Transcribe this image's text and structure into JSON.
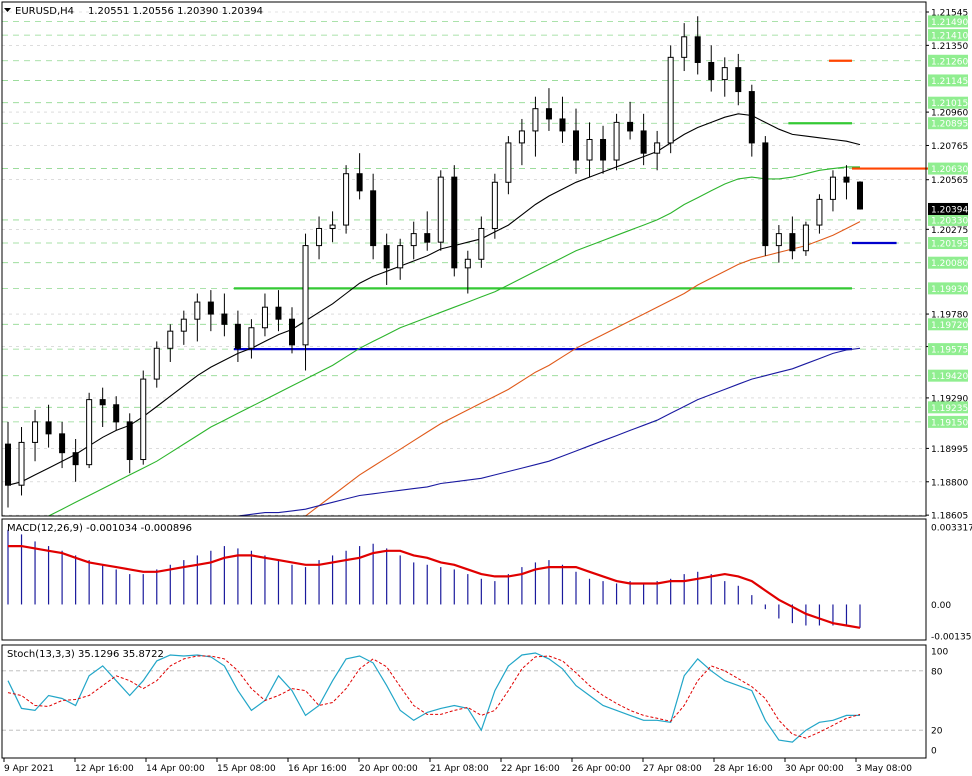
{
  "header": {
    "symbol": "EURUSD,H4",
    "ohlc": "1.20551 1.20556 1.20390 1.20394"
  },
  "colors": {
    "bull_candle": "#ffffff",
    "bear_candle": "#000000",
    "ma_fast": "#000000",
    "ma_mid": "#2db52d",
    "ma_slow": "#e05a1a",
    "ma_long": "#1a1aa0",
    "resistance": "#ff4500",
    "support_green": "#34c934",
    "support_blue": "#0000cc",
    "level_tag_bg": "#90ee90",
    "macd_hist": "#1a1a9c",
    "macd_signal": "#e00000",
    "stoch_main": "#22a6c8",
    "stoch_signal": "#e00000",
    "last_price_bg": "#000000"
  },
  "panes": {
    "main": {
      "scale_labels": [
        "1.21545",
        "1.21350",
        "1.20960",
        "1.20765",
        "1.20565",
        "1.20275",
        "1.19780",
        "1.19590",
        "1.19290",
        "1.18995",
        "1.18800",
        "1.18605"
      ],
      "level_tags": [
        "1.21490",
        "1.21410",
        "1.21260",
        "1.21145",
        "1.21015",
        "1.20895",
        "1.20630",
        "1.20330",
        "1.20195",
        "1.20080",
        "1.19930",
        "1.19720",
        "1.19575",
        "1.19420",
        "1.19235",
        "1.19150"
      ],
      "last_price": "1.20394"
    },
    "macd": {
      "label": "MACD(12,26,9) -0.001034 -0.000896",
      "scale_labels": [
        "0.003317",
        "0.00",
        "-0.00135"
      ]
    },
    "stoch": {
      "label": "Stoch(13,3,3) 35.1296 35.8722",
      "scale_labels": [
        "100",
        "80",
        "20",
        "0"
      ]
    }
  },
  "time_axis": [
    "9 Apr 2021",
    "12 Apr 16:00",
    "14 Apr 00:00",
    "15 Apr 08:00",
    "16 Apr 16:00",
    "20 Apr 00:00",
    "21 Apr 08:00",
    "22 Apr 16:00",
    "26 Apr 00:00",
    "27 Apr 08:00",
    "28 Apr 16:00",
    "30 Apr 00:00",
    "3 May 08:00"
  ],
  "chart_data": {
    "type": "candlestick",
    "symbol": "EURUSD",
    "timeframe": "H4",
    "ylim": [
      1.186,
      1.2158
    ],
    "hlines": [
      {
        "price": 1.2126,
        "style": "resistance",
        "from": 61
      },
      {
        "price": 1.20895,
        "style": "support_green",
        "from": 58
      },
      {
        "price": 1.2063,
        "style": "resistance",
        "from": 70
      },
      {
        "price": 1.20195,
        "style": "support_blue",
        "from": 66
      },
      {
        "price": 1.1993,
        "style": "support_green",
        "from": 17
      },
      {
        "price": 1.19575,
        "style": "support_blue",
        "from": 17
      }
    ],
    "candles": [
      [
        1.1902,
        1.1915,
        1.1865,
        1.1878
      ],
      [
        1.1878,
        1.1912,
        1.1872,
        1.1903
      ],
      [
        1.1903,
        1.1922,
        1.1892,
        1.1915
      ],
      [
        1.1915,
        1.1925,
        1.19,
        1.1908
      ],
      [
        1.1908,
        1.1915,
        1.1888,
        1.1897
      ],
      [
        1.1897,
        1.1905,
        1.188,
        1.189
      ],
      [
        1.189,
        1.1932,
        1.1888,
        1.1928
      ],
      [
        1.1928,
        1.1935,
        1.1912,
        1.1925
      ],
      [
        1.1925,
        1.193,
        1.191,
        1.1915
      ],
      [
        1.1915,
        1.192,
        1.1885,
        1.1893
      ],
      [
        1.1893,
        1.1945,
        1.189,
        1.194
      ],
      [
        1.194,
        1.1962,
        1.1935,
        1.1958
      ],
      [
        1.1958,
        1.1972,
        1.195,
        1.1968
      ],
      [
        1.1968,
        1.198,
        1.196,
        1.1975
      ],
      [
        1.1975,
        1.199,
        1.1962,
        1.1985
      ],
      [
        1.1985,
        1.1992,
        1.1968,
        1.1978
      ],
      [
        1.1978,
        1.199,
        1.1965,
        1.1972
      ],
      [
        1.1972,
        1.198,
        1.195,
        1.1958
      ],
      [
        1.1958,
        1.1975,
        1.1952,
        1.197
      ],
      [
        1.197,
        1.199,
        1.1965,
        1.1982
      ],
      [
        1.1982,
        1.1992,
        1.1968,
        1.1975
      ],
      [
        1.1975,
        1.1982,
        1.1955,
        1.196
      ],
      [
        1.196,
        1.2025,
        1.1945,
        1.2018
      ],
      [
        1.2018,
        1.2035,
        1.201,
        1.2028
      ],
      [
        1.2028,
        1.2038,
        1.202,
        1.203
      ],
      [
        1.203,
        1.2065,
        1.2025,
        1.206
      ],
      [
        1.206,
        1.2072,
        1.2045,
        1.205
      ],
      [
        1.205,
        1.206,
        1.201,
        1.2018
      ],
      [
        1.2018,
        1.2025,
        1.1995,
        1.2005
      ],
      [
        1.2005,
        1.2022,
        1.1998,
        1.2018
      ],
      [
        1.2018,
        1.2032,
        1.201,
        1.2025
      ],
      [
        1.2025,
        1.2038,
        1.2015,
        1.202
      ],
      [
        1.202,
        1.2062,
        1.2015,
        1.2058
      ],
      [
        1.2058,
        1.2065,
        1.2,
        1.2005
      ],
      [
        1.2005,
        1.2015,
        1.199,
        1.201
      ],
      [
        1.201,
        1.2035,
        1.2005,
        1.2028
      ],
      [
        1.2028,
        1.206,
        1.2022,
        1.2055
      ],
      [
        1.2055,
        1.2082,
        1.2048,
        1.2078
      ],
      [
        1.2078,
        1.2092,
        1.2065,
        1.2085
      ],
      [
        1.2085,
        1.2105,
        1.207,
        1.2098
      ],
      [
        1.2098,
        1.211,
        1.2085,
        1.2092
      ],
      [
        1.2092,
        1.2105,
        1.2078,
        1.2085
      ],
      [
        1.2085,
        1.2098,
        1.206,
        1.2068
      ],
      [
        1.2068,
        1.209,
        1.2058,
        1.208
      ],
      [
        1.208,
        1.2088,
        1.206,
        1.2068
      ],
      [
        1.2068,
        1.2095,
        1.2062,
        1.209
      ],
      [
        1.209,
        1.2102,
        1.208,
        1.2085
      ],
      [
        1.2085,
        1.2095,
        1.2065,
        1.2072
      ],
      [
        1.2072,
        1.2085,
        1.2062,
        1.2078
      ],
      [
        1.2078,
        1.2135,
        1.2072,
        1.2128
      ],
      [
        1.2128,
        1.2148,
        1.212,
        1.214
      ],
      [
        1.214,
        1.2152,
        1.2118,
        1.2125
      ],
      [
        1.2125,
        1.2135,
        1.2108,
        1.2115
      ],
      [
        1.2115,
        1.2128,
        1.2105,
        1.2122
      ],
      [
        1.2122,
        1.213,
        1.21,
        1.2108
      ],
      [
        1.2108,
        1.2112,
        1.207,
        1.2078
      ],
      [
        1.2078,
        1.2082,
        1.2012,
        1.2018
      ],
      [
        1.2018,
        1.203,
        1.2008,
        1.2025
      ],
      [
        1.2025,
        1.2035,
        1.201,
        1.2015
      ],
      [
        1.2015,
        1.2032,
        1.2012,
        1.203
      ],
      [
        1.203,
        1.2048,
        1.2025,
        1.2045
      ],
      [
        1.2045,
        1.2062,
        1.2038,
        1.2058
      ],
      [
        1.2058,
        1.2065,
        1.2045,
        1.20551
      ],
      [
        1.20551,
        1.20556,
        1.2039,
        1.20394
      ]
    ],
    "ma": [
      {
        "name": "MA fast",
        "color_key": "ma_fast",
        "values": [
          1.1878,
          1.188,
          1.1884,
          1.1888,
          1.1892,
          1.1896,
          1.1901,
          1.1906,
          1.191,
          1.1913,
          1.1918,
          1.1924,
          1.193,
          1.1936,
          1.1942,
          1.1947,
          1.1951,
          1.1955,
          1.1958,
          1.1962,
          1.1966,
          1.1969,
          1.1974,
          1.1979,
          1.1984,
          1.199,
          1.1996,
          1.2,
          1.2003,
          1.2006,
          1.2009,
          1.2012,
          1.2016,
          1.2018,
          1.202,
          1.2022,
          1.2026,
          1.203,
          1.2036,
          1.2042,
          1.2047,
          1.2051,
          1.2055,
          1.2058,
          1.2061,
          1.2064,
          1.2067,
          1.207,
          1.2073,
          1.2078,
          1.2083,
          1.2087,
          1.209,
          1.2093,
          1.2095,
          1.2094,
          1.209,
          1.2086,
          1.2083,
          1.2082,
          1.2081,
          1.208,
          1.2079,
          1.2077
        ]
      },
      {
        "name": "MA mid",
        "color_key": "ma_mid",
        "values": [
          null,
          null,
          null,
          1.186,
          1.1864,
          1.1868,
          1.1872,
          1.1876,
          1.188,
          1.1884,
          1.1888,
          1.1892,
          1.1897,
          1.1902,
          1.1907,
          1.1912,
          1.1916,
          1.192,
          1.1924,
          1.1928,
          1.1932,
          1.1936,
          1.194,
          1.1944,
          1.1948,
          1.1953,
          1.1958,
          1.1962,
          1.1966,
          1.197,
          1.1973,
          1.1976,
          1.1979,
          1.1982,
          1.1985,
          1.1988,
          1.1991,
          1.1995,
          1.1999,
          1.2003,
          1.2007,
          1.2011,
          1.2015,
          1.2018,
          1.2021,
          1.2024,
          1.2027,
          1.203,
          1.2033,
          1.2037,
          1.2042,
          1.2046,
          1.205,
          1.2054,
          1.2057,
          1.2058,
          1.2057,
          1.2057,
          1.2058,
          1.206,
          1.2062,
          1.2063,
          1.2064,
          1.2064
        ]
      },
      {
        "name": "MA slow",
        "color_key": "ma_slow",
        "values": [
          null,
          null,
          null,
          null,
          null,
          null,
          null,
          null,
          null,
          null,
          null,
          null,
          null,
          null,
          null,
          null,
          null,
          null,
          null,
          null,
          null,
          null,
          1.186,
          1.1866,
          1.1872,
          1.1878,
          1.1884,
          1.1889,
          1.1894,
          1.1899,
          1.1904,
          1.1909,
          1.1914,
          1.1918,
          1.1922,
          1.1926,
          1.193,
          1.1934,
          1.1939,
          1.1944,
          1.1948,
          1.1953,
          1.1958,
          1.1962,
          1.1966,
          1.197,
          1.1974,
          1.1978,
          1.1982,
          1.1986,
          1.199,
          1.1995,
          1.1999,
          1.2003,
          1.2007,
          1.201,
          1.2012,
          1.2014,
          1.2016,
          1.2018,
          1.2021,
          1.2024,
          1.2028,
          1.2032
        ]
      },
      {
        "name": "MA long",
        "color_key": "ma_long",
        "values": [
          null,
          null,
          null,
          null,
          null,
          null,
          null,
          null,
          null,
          null,
          null,
          null,
          null,
          null,
          null,
          null,
          null,
          1.186,
          1.1861,
          1.1862,
          1.1862,
          1.1863,
          1.1864,
          1.1866,
          1.1868,
          1.187,
          1.1872,
          1.1873,
          1.1874,
          1.1875,
          1.1876,
          1.1877,
          1.1879,
          1.188,
          1.1881,
          1.1882,
          1.1884,
          1.1886,
          1.1888,
          1.189,
          1.1892,
          1.1895,
          1.1898,
          1.1901,
          1.1904,
          1.1907,
          1.191,
          1.1913,
          1.1916,
          1.192,
          1.1924,
          1.1928,
          1.1931,
          1.1934,
          1.1937,
          1.194,
          1.1942,
          1.1944,
          1.1946,
          1.1949,
          1.1952,
          1.1955,
          1.1957,
          1.1958
        ]
      }
    ],
    "macd": {
      "ylim": [
        -0.00135,
        0.003317
      ],
      "hist": [
        0.0032,
        0.003,
        0.0027,
        0.0025,
        0.0023,
        0.0021,
        0.0019,
        0.0017,
        0.0015,
        0.0013,
        0.0013,
        0.0015,
        0.0017,
        0.0019,
        0.0021,
        0.0023,
        0.0025,
        0.0024,
        0.0023,
        0.0021,
        0.0019,
        0.0017,
        0.0016,
        0.0019,
        0.0021,
        0.0023,
        0.0025,
        0.0026,
        0.0024,
        0.0021,
        0.0018,
        0.0017,
        0.0016,
        0.0015,
        0.0013,
        0.0011,
        0.001,
        0.0013,
        0.0016,
        0.0018,
        0.0019,
        0.0017,
        0.0014,
        0.0011,
        0.001,
        0.0009,
        0.001,
        0.0009,
        0.001,
        0.0011,
        0.0013,
        0.0014,
        0.0013,
        0.001,
        0.0008,
        0.0004,
        -0.0002,
        -0.0006,
        -0.0008,
        -0.0009,
        -0.0009,
        -0.0009,
        -0.0009,
        -0.001
      ],
      "signal": [
        0.0025,
        0.0025,
        0.0024,
        0.0023,
        0.0022,
        0.002,
        0.0018,
        0.0017,
        0.0016,
        0.0015,
        0.0014,
        0.0014,
        0.0015,
        0.0016,
        0.0017,
        0.0018,
        0.002,
        0.0021,
        0.0021,
        0.002,
        0.0019,
        0.0018,
        0.0017,
        0.0017,
        0.0018,
        0.0019,
        0.002,
        0.0022,
        0.0023,
        0.0023,
        0.0021,
        0.002,
        0.0018,
        0.0017,
        0.0015,
        0.0013,
        0.0012,
        0.0012,
        0.0013,
        0.0015,
        0.0016,
        0.0016,
        0.0016,
        0.0014,
        0.0012,
        0.001,
        0.0009,
        0.0009,
        0.0009,
        0.001,
        0.001,
        0.0011,
        0.0012,
        0.0013,
        0.0012,
        0.001,
        0.0006,
        0.0002,
        -0.0001,
        -0.0004,
        -0.0006,
        -0.0008,
        -0.0009,
        -0.001
      ]
    },
    "stoch": {
      "ylim": [
        0,
        100
      ],
      "levels": [
        80,
        20
      ],
      "main": [
        70,
        42,
        40,
        55,
        52,
        45,
        75,
        85,
        70,
        55,
        70,
        90,
        96,
        95,
        96,
        94,
        85,
        60,
        40,
        50,
        75,
        60,
        35,
        45,
        70,
        92,
        95,
        88,
        65,
        40,
        30,
        38,
        42,
        45,
        42,
        20,
        60,
        85,
        96,
        98,
        92,
        82,
        65,
        55,
        45,
        40,
        35,
        30,
        30,
        28,
        75,
        92,
        80,
        70,
        65,
        60,
        30,
        10,
        8,
        20,
        28,
        30,
        35,
        35
      ],
      "signal": [
        58,
        55,
        45,
        44,
        50,
        51,
        55,
        65,
        75,
        70,
        62,
        70,
        85,
        92,
        95,
        95,
        92,
        80,
        62,
        50,
        55,
        62,
        60,
        45,
        48,
        62,
        82,
        92,
        84,
        64,
        45,
        36,
        36,
        40,
        43,
        35,
        40,
        60,
        82,
        94,
        95,
        90,
        78,
        65,
        55,
        47,
        40,
        35,
        32,
        29,
        45,
        70,
        85,
        80,
        72,
        64,
        52,
        30,
        16,
        12,
        18,
        25,
        32,
        36
      ]
    }
  }
}
